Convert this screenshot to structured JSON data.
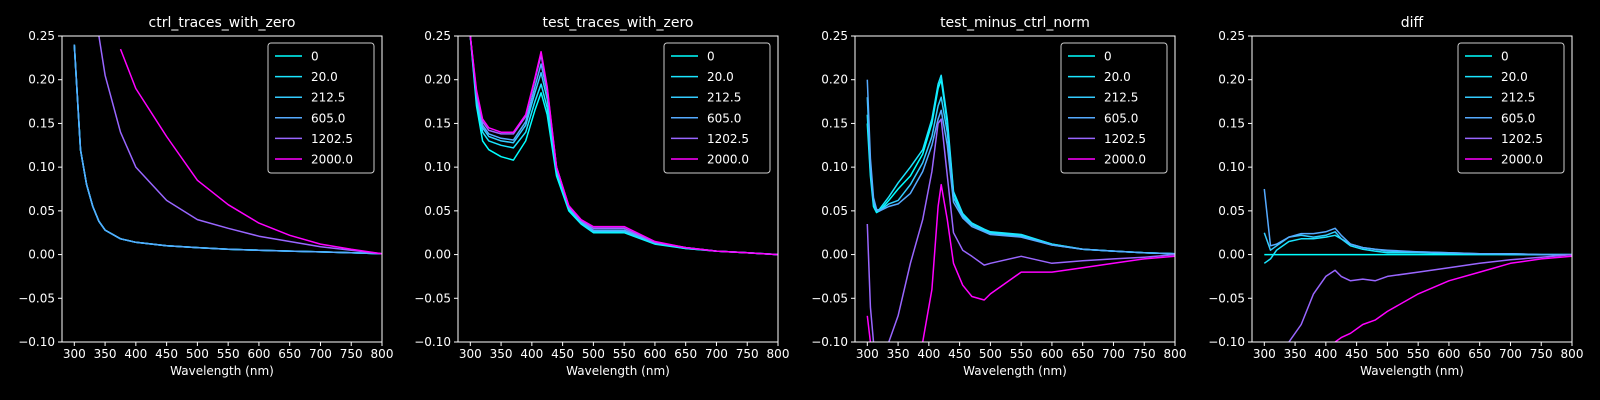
{
  "chart_data": [
    {
      "type": "line",
      "title": "ctrl_traces_with_zero",
      "xlabel": "Wavelength (nm)",
      "ylabel": "",
      "xlim": [
        280,
        800
      ],
      "ylim": [
        -0.1,
        0.25
      ],
      "xticks": [
        "300",
        "350",
        "400",
        "450",
        "500",
        "550",
        "600",
        "650",
        "700",
        "750",
        "800"
      ],
      "yticks": [
        "−0.10",
        "−0.05",
        "0.00",
        "0.05",
        "0.10",
        "0.15",
        "0.20",
        "0.25"
      ],
      "legend_position": "top-right",
      "x": [
        300,
        310,
        320,
        330,
        340,
        350,
        375,
        400,
        450,
        500,
        550,
        600,
        650,
        700,
        750,
        800
      ],
      "series": [
        {
          "name": "0",
          "color": "#00ffff",
          "values": [
            0.24,
            0.12,
            0.08,
            0.055,
            0.038,
            0.028,
            0.018,
            0.014,
            0.01,
            0.008,
            0.006,
            0.005,
            0.004,
            0.003,
            0.002,
            0.001
          ]
        },
        {
          "name": "20.0",
          "color": "#1ae5ff",
          "values": [
            0.24,
            0.12,
            0.08,
            0.055,
            0.038,
            0.028,
            0.018,
            0.014,
            0.01,
            0.008,
            0.006,
            0.005,
            0.004,
            0.003,
            0.002,
            0.001
          ]
        },
        {
          "name": "212.5",
          "color": "#33ccff",
          "values": [
            0.24,
            0.12,
            0.08,
            0.055,
            0.038,
            0.028,
            0.018,
            0.014,
            0.01,
            0.008,
            0.006,
            0.005,
            0.004,
            0.003,
            0.002,
            0.001
          ]
        },
        {
          "name": "605.0",
          "color": "#55aaff",
          "values": [
            0.24,
            0.12,
            0.08,
            0.055,
            0.038,
            0.028,
            0.018,
            0.014,
            0.01,
            0.008,
            0.006,
            0.005,
            0.004,
            0.003,
            0.002,
            0.001
          ]
        },
        {
          "name": "1202.5",
          "color": "#9966ff",
          "values": [
            null,
            null,
            null,
            null,
            0.25,
            0.205,
            0.14,
            0.1,
            0.062,
            0.04,
            0.03,
            0.021,
            0.015,
            0.009,
            0.005,
            0.001
          ]
        },
        {
          "name": "2000.0",
          "color": "#ff00ff",
          "values": [
            null,
            null,
            null,
            null,
            null,
            null,
            0.235,
            0.19,
            0.135,
            0.085,
            0.057,
            0.036,
            0.022,
            0.012,
            0.006,
            0.001
          ]
        }
      ]
    },
    {
      "type": "line",
      "title": "test_traces_with_zero",
      "xlabel": "Wavelength (nm)",
      "ylabel": "",
      "xlim": [
        280,
        800
      ],
      "ylim": [
        -0.1,
        0.25
      ],
      "xticks": [
        "300",
        "350",
        "400",
        "450",
        "500",
        "550",
        "600",
        "650",
        "700",
        "750",
        "800"
      ],
      "yticks": [
        "−0.10",
        "−0.05",
        "0.00",
        "0.05",
        "0.10",
        "0.15",
        "0.20",
        "0.25"
      ],
      "legend_position": "top-right",
      "x": [
        300,
        310,
        320,
        330,
        350,
        370,
        390,
        405,
        415,
        425,
        440,
        460,
        480,
        500,
        550,
        600,
        650,
        700,
        750,
        800
      ],
      "series": [
        {
          "name": "0",
          "color": "#00ffff",
          "values": [
            0.25,
            0.17,
            0.13,
            0.12,
            0.112,
            0.108,
            0.13,
            0.165,
            0.185,
            0.16,
            0.09,
            0.05,
            0.035,
            0.025,
            0.025,
            0.012,
            0.007,
            0.004,
            0.002,
            0.0
          ]
        },
        {
          "name": "20.0",
          "color": "#1ae5ff",
          "values": [
            0.25,
            0.175,
            0.14,
            0.13,
            0.125,
            0.122,
            0.14,
            0.175,
            0.195,
            0.168,
            0.095,
            0.052,
            0.036,
            0.026,
            0.026,
            0.013,
            0.007,
            0.004,
            0.002,
            0.0
          ]
        },
        {
          "name": "212.5",
          "color": "#33ccff",
          "values": [
            0.25,
            0.18,
            0.145,
            0.135,
            0.13,
            0.128,
            0.148,
            0.185,
            0.208,
            0.178,
            0.098,
            0.054,
            0.037,
            0.027,
            0.027,
            0.013,
            0.008,
            0.004,
            0.002,
            0.0
          ]
        },
        {
          "name": "605.0",
          "color": "#55aaff",
          "values": [
            0.25,
            0.182,
            0.148,
            0.138,
            0.133,
            0.131,
            0.152,
            0.192,
            0.218,
            0.186,
            0.1,
            0.055,
            0.038,
            0.028,
            0.028,
            0.014,
            0.008,
            0.004,
            0.002,
            0.0
          ]
        },
        {
          "name": "1202.5",
          "color": "#9966ff",
          "values": [
            0.25,
            0.185,
            0.152,
            0.142,
            0.138,
            0.138,
            0.158,
            0.2,
            0.228,
            0.19,
            0.1,
            0.055,
            0.039,
            0.03,
            0.03,
            0.014,
            0.008,
            0.004,
            0.002,
            0.0
          ]
        },
        {
          "name": "2000.0",
          "color": "#ff00ff",
          "values": [
            0.25,
            0.188,
            0.155,
            0.145,
            0.14,
            0.14,
            0.16,
            0.202,
            0.232,
            0.192,
            0.1,
            0.056,
            0.04,
            0.032,
            0.032,
            0.015,
            0.008,
            0.004,
            0.002,
            0.0
          ]
        }
      ]
    },
    {
      "type": "line",
      "title": "test_minus_ctrl_norm",
      "xlabel": "Wavelength (nm)",
      "ylabel": "",
      "xlim": [
        280,
        800
      ],
      "ylim": [
        -0.1,
        0.25
      ],
      "xticks": [
        "300",
        "350",
        "400",
        "450",
        "500",
        "550",
        "600",
        "650",
        "700",
        "750",
        "800"
      ],
      "yticks": [
        "−0.10",
        "−0.05",
        "0.00",
        "0.05",
        "0.10",
        "0.15",
        "0.20",
        "0.25"
      ],
      "legend_position": "top-right",
      "x": [
        300,
        305,
        310,
        315,
        320,
        335,
        350,
        370,
        390,
        405,
        415,
        420,
        430,
        440,
        455,
        470,
        490,
        500,
        550,
        600,
        650,
        700,
        750,
        800
      ],
      "series": [
        {
          "name": "0",
          "color": "#00ffff",
          "values": [
            0.15,
            0.09,
            0.055,
            0.048,
            0.05,
            0.062,
            0.075,
            0.09,
            0.115,
            0.15,
            0.19,
            0.2,
            0.15,
            0.07,
            0.045,
            0.035,
            0.028,
            0.025,
            0.022,
            0.012,
            0.006,
            0.004,
            0.002,
            0.001
          ]
        },
        {
          "name": "20.0",
          "color": "#1ae5ff",
          "values": [
            0.16,
            0.095,
            0.058,
            0.05,
            0.052,
            0.066,
            0.082,
            0.1,
            0.12,
            0.155,
            0.195,
            0.205,
            0.155,
            0.072,
            0.047,
            0.036,
            0.029,
            0.026,
            0.023,
            0.012,
            0.006,
            0.004,
            0.002,
            0.001
          ]
        },
        {
          "name": "212.5",
          "color": "#33ccff",
          "values": [
            0.18,
            0.1,
            0.06,
            0.05,
            0.05,
            0.058,
            0.062,
            0.08,
            0.105,
            0.135,
            0.17,
            0.18,
            0.14,
            0.065,
            0.044,
            0.034,
            0.027,
            0.024,
            0.021,
            0.011,
            0.006,
            0.004,
            0.002,
            0.001
          ]
        },
        {
          "name": "605.0",
          "color": "#55aaff",
          "values": [
            0.2,
            0.11,
            0.065,
            0.052,
            0.05,
            0.055,
            0.058,
            0.07,
            0.095,
            0.125,
            0.155,
            0.165,
            0.125,
            0.06,
            0.042,
            0.032,
            0.026,
            0.023,
            0.02,
            0.011,
            0.006,
            0.004,
            0.002,
            0.001
          ]
        },
        {
          "name": "1202.5",
          "color": "#9966ff",
          "values": [
            0.035,
            -0.06,
            -0.1,
            null,
            null,
            -0.1,
            -0.07,
            -0.01,
            0.04,
            0.095,
            0.15,
            0.155,
            0.09,
            0.025,
            0.005,
            -0.002,
            -0.012,
            -0.01,
            -0.002,
            -0.01,
            -0.007,
            -0.005,
            -0.003,
            0.0
          ]
        },
        {
          "name": "2000.0",
          "color": "#ff00ff",
          "values": [
            -0.07,
            -0.1,
            null,
            null,
            null,
            null,
            null,
            null,
            -0.1,
            -0.04,
            0.055,
            0.08,
            0.04,
            -0.01,
            -0.035,
            -0.048,
            -0.052,
            -0.045,
            -0.02,
            -0.02,
            -0.015,
            -0.01,
            -0.005,
            -0.002
          ]
        }
      ]
    },
    {
      "type": "line",
      "title": "diff",
      "xlabel": "Wavelength (nm)",
      "ylabel": "",
      "xlim": [
        280,
        800
      ],
      "ylim": [
        -0.1,
        0.25
      ],
      "xticks": [
        "300",
        "350",
        "400",
        "450",
        "500",
        "550",
        "600",
        "650",
        "700",
        "750",
        "800"
      ],
      "yticks": [
        "−0.10",
        "−0.05",
        "0.00",
        "0.05",
        "0.10",
        "0.15",
        "0.20",
        "0.25"
      ],
      "legend_position": "top-right",
      "x": [
        300,
        310,
        320,
        340,
        360,
        380,
        400,
        415,
        425,
        440,
        460,
        480,
        500,
        550,
        600,
        650,
        700,
        750,
        800
      ],
      "series": [
        {
          "name": "0",
          "color": "#00ffff",
          "values": [
            0.0,
            0.0,
            0.0,
            0.0,
            0.0,
            0.0,
            0.0,
            0.0,
            0.0,
            0.0,
            0.0,
            0.0,
            0.0,
            0.0,
            0.0,
            0.0,
            0.0,
            0.0,
            0.0
          ]
        },
        {
          "name": "20.0",
          "color": "#1ae5ff",
          "values": [
            -0.01,
            -0.005,
            0.005,
            0.015,
            0.018,
            0.018,
            0.02,
            0.022,
            0.018,
            0.01,
            0.006,
            0.004,
            0.002,
            0.002,
            0.001,
            0.001,
            0.0,
            0.0,
            0.0
          ]
        },
        {
          "name": "212.5",
          "color": "#33ccff",
          "values": [
            0.025,
            0.005,
            0.01,
            0.02,
            0.022,
            0.02,
            0.022,
            0.026,
            0.018,
            0.012,
            0.008,
            0.006,
            0.004,
            0.003,
            0.002,
            0.001,
            0.001,
            0.0,
            0.0
          ]
        },
        {
          "name": "605.0",
          "color": "#55aaff",
          "values": [
            0.075,
            0.01,
            0.012,
            0.02,
            0.024,
            0.024,
            0.026,
            0.03,
            0.022,
            0.012,
            0.008,
            0.006,
            0.005,
            0.003,
            0.002,
            0.001,
            0.001,
            0.0,
            0.0
          ]
        },
        {
          "name": "1202.5",
          "color": "#9966ff",
          "values": [
            -0.09,
            null,
            null,
            -0.1,
            -0.08,
            -0.045,
            -0.025,
            -0.018,
            -0.025,
            -0.03,
            -0.028,
            -0.03,
            -0.025,
            -0.02,
            -0.015,
            -0.01,
            -0.006,
            -0.003,
            0.0
          ]
        },
        {
          "name": "2000.0",
          "color": "#ff00ff",
          "values": [
            null,
            null,
            null,
            null,
            null,
            null,
            null,
            -0.1,
            -0.095,
            -0.09,
            -0.08,
            -0.075,
            -0.065,
            -0.045,
            -0.03,
            -0.02,
            -0.01,
            -0.005,
            -0.002
          ]
        }
      ]
    }
  ]
}
